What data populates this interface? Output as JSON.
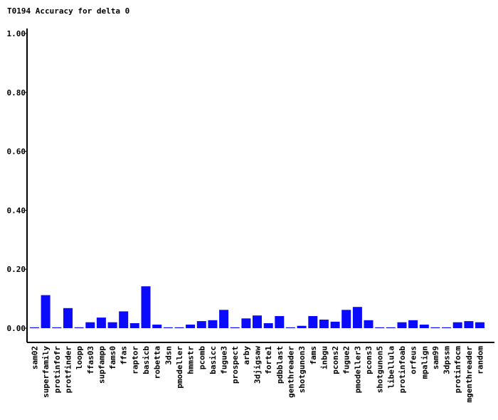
{
  "chart_data": {
    "type": "bar",
    "title": "T0194 Accuracy for delta 0",
    "ylim": [
      0,
      1.0
    ],
    "yticks": [
      "0.00",
      "0.20",
      "0.40",
      "0.60",
      "0.80",
      "1.00"
    ],
    "bar_color": "#0a0aff",
    "categories": [
      "sam02",
      "superfamily",
      "protinfofr",
      "protfinder",
      "loopp",
      "ffas03",
      "supfampp",
      "fams0",
      "ffas",
      "raptor",
      "basicb",
      "robetta",
      "3dsn",
      "pmodeller",
      "hmmstr",
      "pcomb",
      "basicc",
      "fugue3",
      "prospect",
      "arby",
      "3djigsaw",
      "forte1",
      "pdbblast",
      "genthreader",
      "shotgunon3",
      "fams",
      "inbgu",
      "pcons2",
      "fugue2",
      "pmodeller3",
      "pcons3",
      "shotgunon5",
      "libellula",
      "protinfoab",
      "orfeus",
      "mpalign",
      "sam99",
      "3dpssm",
      "protinfocm",
      "mgenthreader",
      "random"
    ],
    "values": [
      0.003,
      0.112,
      0.003,
      0.068,
      0.003,
      0.02,
      0.036,
      0.02,
      0.057,
      0.017,
      0.142,
      0.012,
      0.003,
      0.003,
      0.012,
      0.024,
      0.027,
      0.062,
      0.003,
      0.033,
      0.043,
      0.017,
      0.041,
      0.003,
      0.008,
      0.041,
      0.029,
      0.022,
      0.062,
      0.072,
      0.027,
      0.003,
      0.003,
      0.02,
      0.027,
      0.012,
      0.003,
      0.003,
      0.02,
      0.024,
      0.02
    ]
  }
}
